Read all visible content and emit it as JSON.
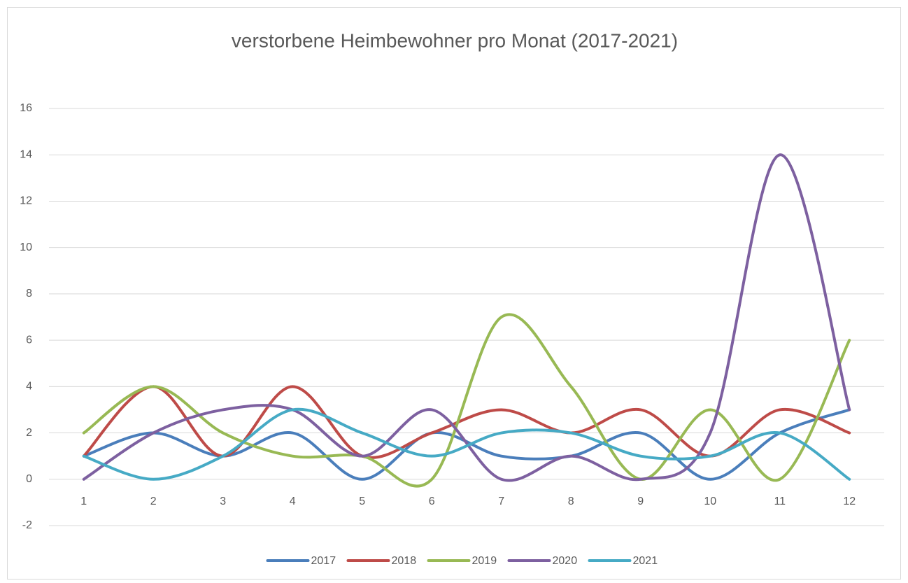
{
  "chart_data": {
    "type": "line",
    "title": "verstorbene Heimbewohner pro Monat (2017-2021)",
    "categories": [
      1,
      2,
      3,
      4,
      5,
      6,
      7,
      8,
      9,
      10,
      11,
      12
    ],
    "series": [
      {
        "name": "2017",
        "color": "#4a7ebb",
        "values": [
          1,
          2,
          1,
          2,
          0,
          2,
          1,
          1,
          2,
          0,
          2,
          3
        ]
      },
      {
        "name": "2018",
        "color": "#be4b48",
        "values": [
          1,
          4,
          1,
          4,
          1,
          2,
          3,
          2,
          3,
          1,
          3,
          2
        ]
      },
      {
        "name": "2019",
        "color": "#98b954",
        "values": [
          2,
          4,
          2,
          1,
          1,
          0,
          7,
          4,
          0,
          3,
          0,
          6
        ]
      },
      {
        "name": "2020",
        "color": "#7d60a0",
        "values": [
          0,
          2,
          3,
          3,
          1,
          3,
          0,
          1,
          0,
          2,
          14,
          3
        ]
      },
      {
        "name": "2021",
        "color": "#46aac5",
        "values": [
          1,
          0,
          1,
          3,
          2,
          1,
          2,
          2,
          1,
          1,
          2,
          0
        ]
      }
    ],
    "ylim": [
      -2,
      16
    ],
    "yticks": [
      -2,
      0,
      2,
      4,
      6,
      8,
      10,
      12,
      14,
      16
    ],
    "grid": true,
    "smooth": true,
    "legend": "bottom"
  }
}
